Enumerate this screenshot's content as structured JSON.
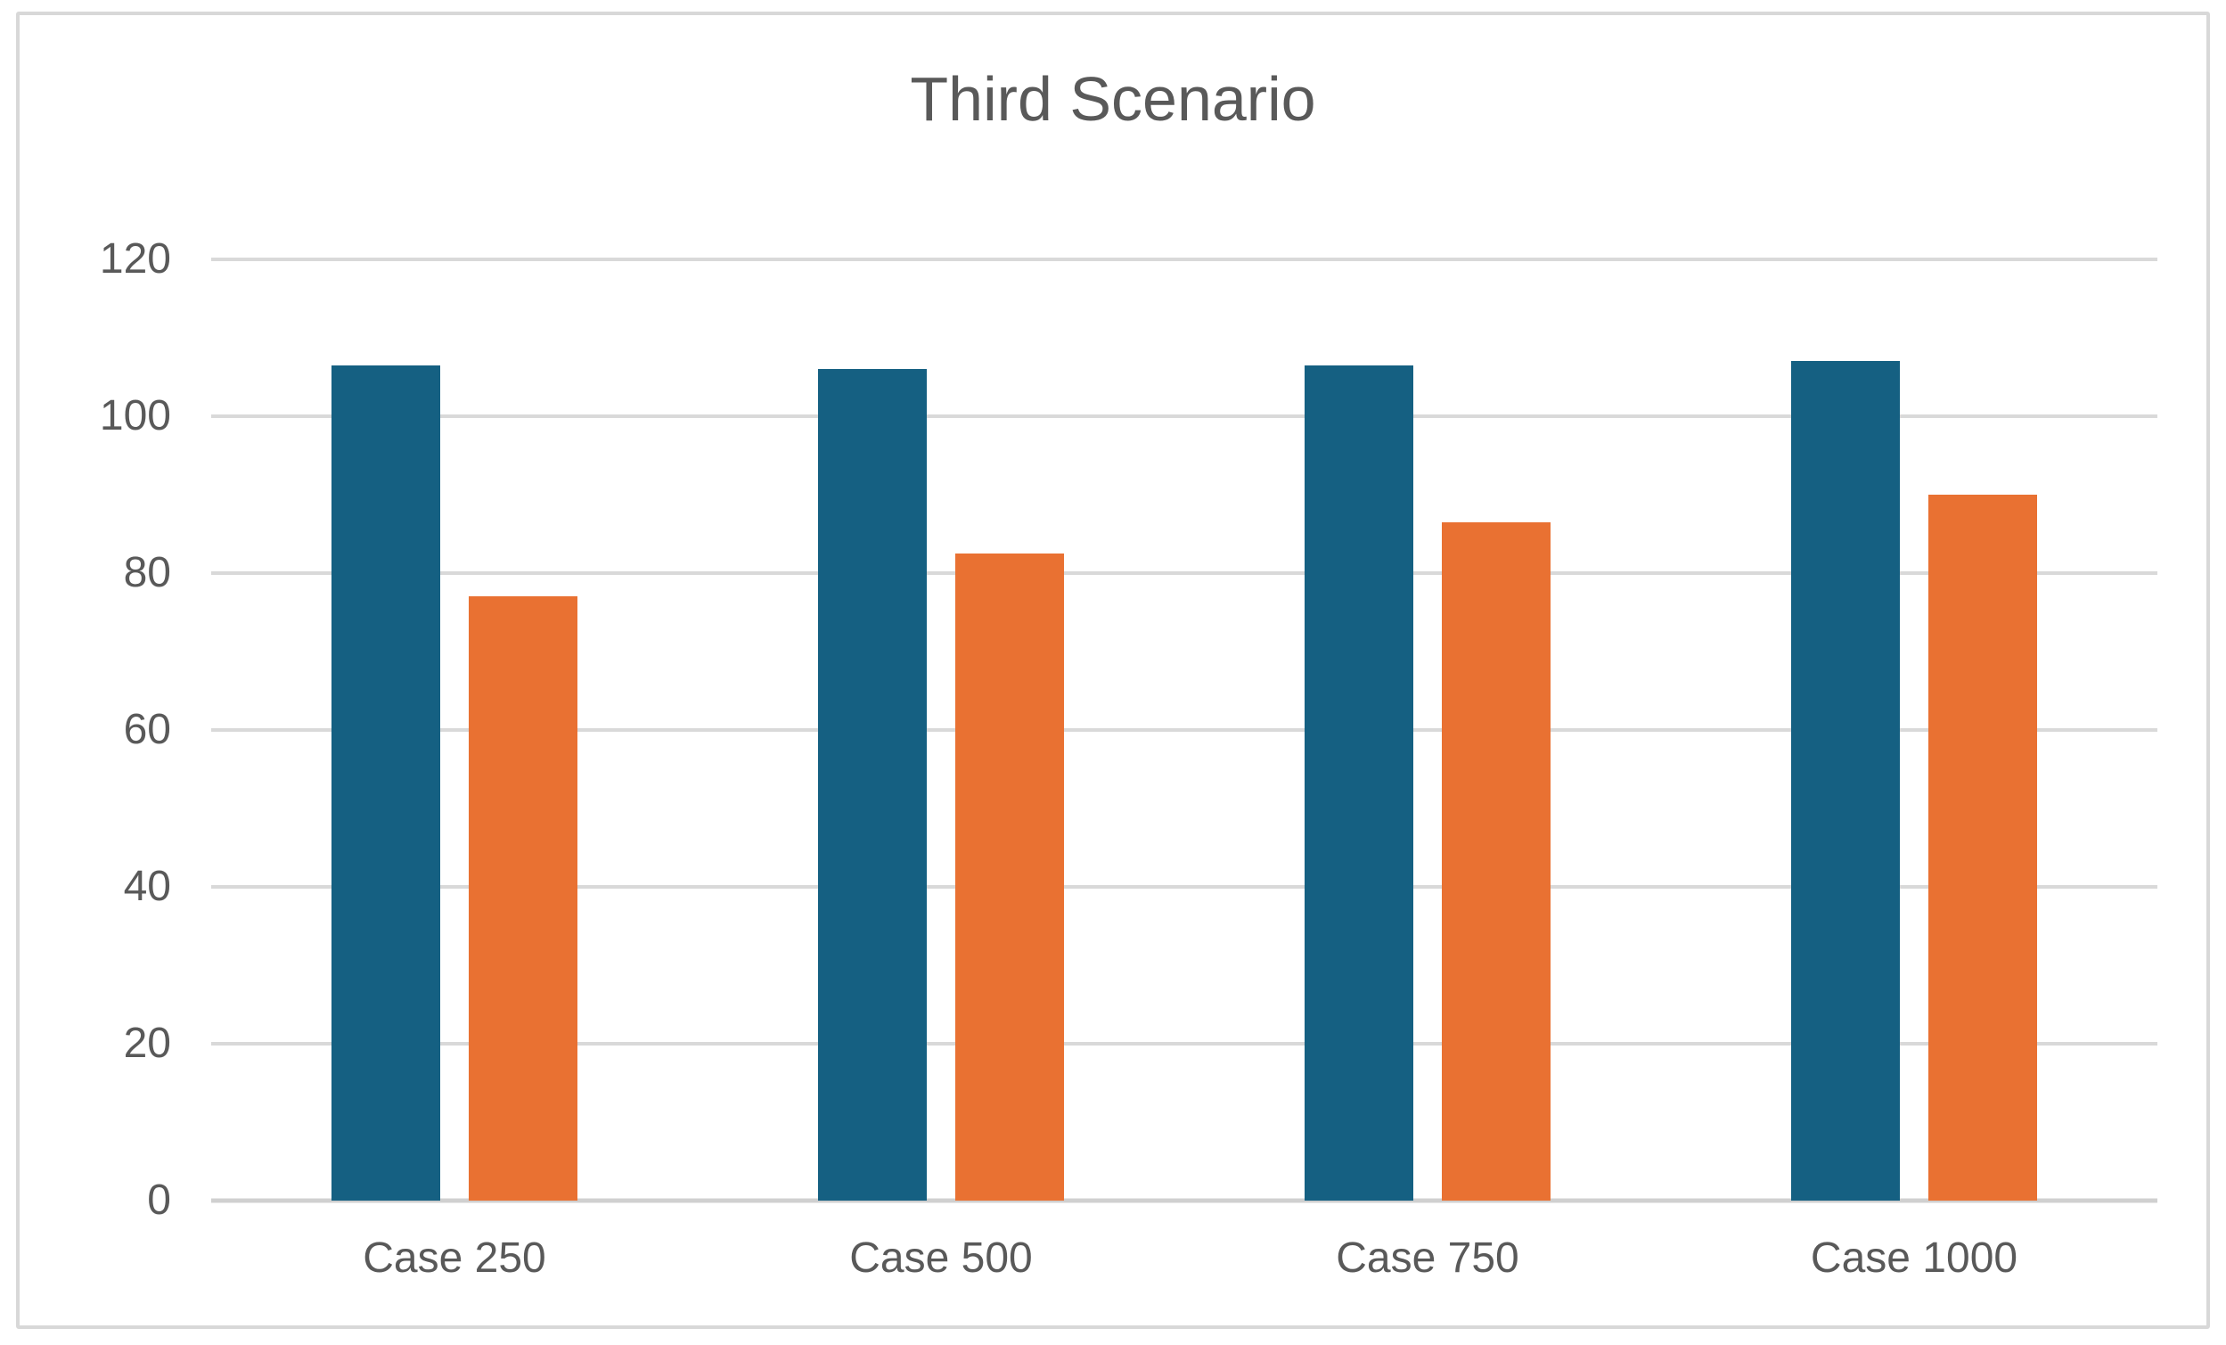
{
  "chart_data": {
    "type": "bar",
    "title": "Third Scenario",
    "categories": [
      "Case 250",
      "Case 500",
      "Case 750",
      "Case 1000"
    ],
    "series": [
      {
        "id": "series-1",
        "color": "#156082",
        "values": [
          106.5,
          106,
          106.5,
          107
        ]
      },
      {
        "id": "series-2",
        "color": "#E97132",
        "values": [
          77,
          82.5,
          86.5,
          90
        ]
      }
    ],
    "xlabel": "",
    "ylabel": "",
    "ylim": [
      0,
      120
    ],
    "yticks": [
      120,
      100,
      80,
      60,
      40,
      20,
      0
    ],
    "grid": true,
    "legend": false
  },
  "colors": {
    "series_1": "#156082",
    "series_2": "#E97132",
    "gridline": "#D9D9D9",
    "axis_line": "#D0D0D0",
    "axis_text": "#595959",
    "frame_border": "#D8D8D8",
    "background": "#FFFFFF"
  }
}
